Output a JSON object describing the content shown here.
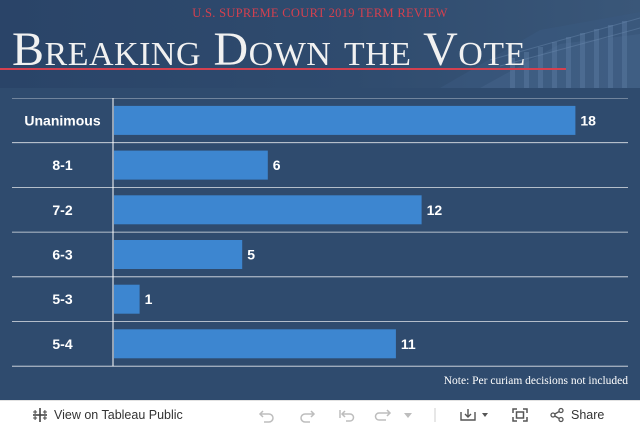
{
  "header": {
    "kicker": "U.S. SUPREME COURT 2019 TERM REVIEW",
    "title": "Breaking Down the Vote"
  },
  "note": "Note: Per curiam decisions not included",
  "colors": {
    "background": "#2f4b6e",
    "bar": "#3d86d0",
    "accent": "#d4404f",
    "text": "#ffffff"
  },
  "toolbar": {
    "view_label": "View on Tableau Public",
    "share_label": "Share",
    "icons": [
      "tableau-logo-icon",
      "undo-icon",
      "redo-icon",
      "revert-icon",
      "refresh-icon",
      "chevron-down-icon",
      "download-icon",
      "fullscreen-icon",
      "share-icon"
    ]
  },
  "chart_data": {
    "type": "bar",
    "orientation": "horizontal",
    "categories": [
      "Unanimous",
      "8-1",
      "7-2",
      "6-3",
      "5-3",
      "5-4"
    ],
    "values": [
      18,
      6,
      12,
      5,
      1,
      11
    ],
    "xlim": [
      0,
      19
    ],
    "grid": false,
    "data_labels": true
  }
}
